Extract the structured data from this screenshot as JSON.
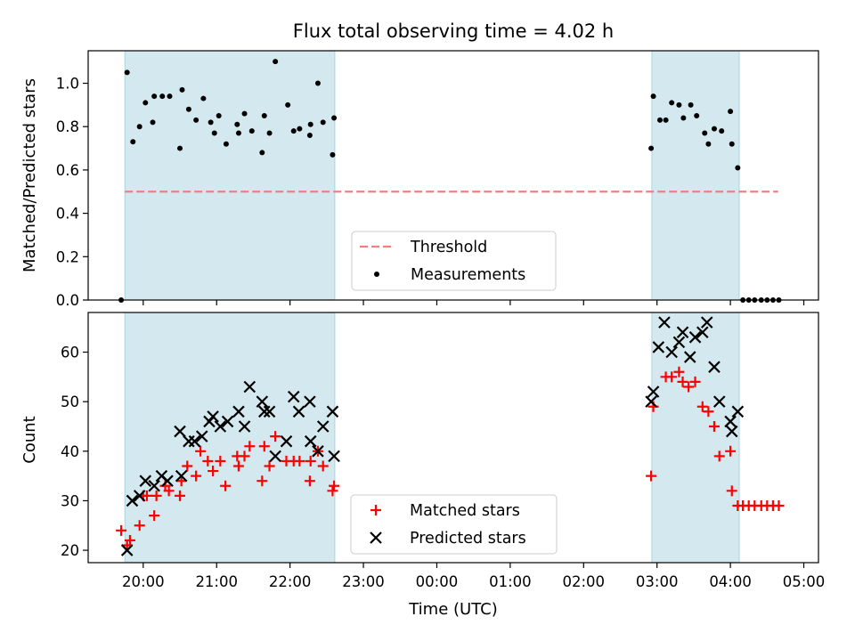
{
  "chart_data": [
    {
      "type": "scatter",
      "title": "Flux total observing time = 4.02 h",
      "xlabel": "",
      "ylabel": "Matched/Predicted stars",
      "xlim": [
        19.25,
        29.2
      ],
      "ylim": [
        0.0,
        1.15
      ],
      "yticks": [
        {
          "v": 0.0,
          "label": "0.0"
        },
        {
          "v": 0.2,
          "label": "0.2"
        },
        {
          "v": 0.4,
          "label": "0.4"
        },
        {
          "v": 0.6,
          "label": "0.6"
        },
        {
          "v": 0.8,
          "label": "0.8"
        },
        {
          "v": 1.0,
          "label": "1.0"
        }
      ],
      "xticks_hours": [
        20,
        21,
        22,
        23,
        24,
        25,
        26,
        27,
        28,
        29
      ],
      "shaded_spans": [
        [
          19.75,
          22.61
        ],
        [
          26.93,
          28.12
        ]
      ],
      "shade_color": "#a8d4e0",
      "legend_position": "lower center",
      "legend": [
        {
          "label": "Threshold",
          "marker": "dashed-line",
          "color": "#f08080"
        },
        {
          "label": "Measurements",
          "marker": "dot",
          "color": "#000000"
        }
      ],
      "threshold": {
        "name": "Threshold",
        "y": 0.5,
        "x_range": [
          19.75,
          28.65
        ],
        "color": "#f08080"
      },
      "series": [
        {
          "name": "Measurements",
          "marker": "dot",
          "color": "#000000",
          "points": [
            [
              19.7,
              0.0
            ],
            [
              19.78,
              1.05
            ],
            [
              19.86,
              0.73
            ],
            [
              19.95,
              0.8
            ],
            [
              20.03,
              0.91
            ],
            [
              20.13,
              0.82
            ],
            [
              20.15,
              0.94
            ],
            [
              20.26,
              0.94
            ],
            [
              20.36,
              0.94
            ],
            [
              20.5,
              0.7
            ],
            [
              20.53,
              0.97
            ],
            [
              20.62,
              0.88
            ],
            [
              20.72,
              0.83
            ],
            [
              20.82,
              0.93
            ],
            [
              20.92,
              0.82
            ],
            [
              20.97,
              0.77
            ],
            [
              21.03,
              0.85
            ],
            [
              21.13,
              0.72
            ],
            [
              21.28,
              0.81
            ],
            [
              21.3,
              0.77
            ],
            [
              21.38,
              0.86
            ],
            [
              21.48,
              0.78
            ],
            [
              21.62,
              0.68
            ],
            [
              21.65,
              0.85
            ],
            [
              21.72,
              0.77
            ],
            [
              21.8,
              1.1
            ],
            [
              21.97,
              0.9
            ],
            [
              22.05,
              0.78
            ],
            [
              22.13,
              0.79
            ],
            [
              22.27,
              0.76
            ],
            [
              22.28,
              0.81
            ],
            [
              22.38,
              1.0
            ],
            [
              22.45,
              0.82
            ],
            [
              22.58,
              0.67
            ],
            [
              22.6,
              0.84
            ],
            [
              26.92,
              0.7
            ],
            [
              26.95,
              0.94
            ],
            [
              27.04,
              0.83
            ],
            [
              27.12,
              0.83
            ],
            [
              27.2,
              0.91
            ],
            [
              27.3,
              0.9
            ],
            [
              27.36,
              0.84
            ],
            [
              27.46,
              0.9
            ],
            [
              27.54,
              0.85
            ],
            [
              27.65,
              0.77
            ],
            [
              27.7,
              0.72
            ],
            [
              27.78,
              0.79
            ],
            [
              27.88,
              0.78
            ],
            [
              28.0,
              0.87
            ],
            [
              28.02,
              0.72
            ],
            [
              28.1,
              0.61
            ],
            [
              28.17,
              0.0
            ],
            [
              28.25,
              0.0
            ],
            [
              28.33,
              0.0
            ],
            [
              28.42,
              0.0
            ],
            [
              28.5,
              0.0
            ],
            [
              28.58,
              0.0
            ],
            [
              28.66,
              0.0
            ]
          ]
        }
      ]
    },
    {
      "type": "scatter",
      "title": "",
      "xlabel": "Time (UTC)",
      "ylabel": "Count",
      "xlim": [
        19.25,
        29.2
      ],
      "ylim": [
        17.5,
        68.0
      ],
      "yticks": [
        {
          "v": 20,
          "label": "20"
        },
        {
          "v": 30,
          "label": "30"
        },
        {
          "v": 40,
          "label": "40"
        },
        {
          "v": 50,
          "label": "50"
        },
        {
          "v": 60,
          "label": "60"
        }
      ],
      "xticks": [
        {
          "v": 20,
          "label": "20:00"
        },
        {
          "v": 21,
          "label": "21:00"
        },
        {
          "v": 22,
          "label": "22:00"
        },
        {
          "v": 23,
          "label": "23:00"
        },
        {
          "v": 24,
          "label": "00:00"
        },
        {
          "v": 25,
          "label": "01:00"
        },
        {
          "v": 26,
          "label": "02:00"
        },
        {
          "v": 27,
          "label": "03:00"
        },
        {
          "v": 28,
          "label": "04:00"
        },
        {
          "v": 29,
          "label": "05:00"
        }
      ],
      "shaded_spans": [
        [
          19.75,
          22.61
        ],
        [
          26.93,
          28.12
        ]
      ],
      "shade_color": "#a8d4e0",
      "legend_position": "lower center",
      "legend": [
        {
          "label": "Matched stars",
          "marker": "plus",
          "color": "#ff0000"
        },
        {
          "label": "Predicted stars",
          "marker": "x",
          "color": "#000000"
        }
      ],
      "series": [
        {
          "name": "Matched stars",
          "marker": "plus",
          "color": "#ff0000",
          "points": [
            [
              19.7,
              24
            ],
            [
              19.78,
              21
            ],
            [
              19.82,
              22
            ],
            [
              19.95,
              25
            ],
            [
              20.0,
              31
            ],
            [
              20.05,
              31
            ],
            [
              20.15,
              27
            ],
            [
              20.18,
              31
            ],
            [
              20.3,
              33
            ],
            [
              20.35,
              32
            ],
            [
              20.5,
              31
            ],
            [
              20.52,
              34
            ],
            [
              20.6,
              37
            ],
            [
              20.72,
              35
            ],
            [
              20.78,
              40
            ],
            [
              20.88,
              38
            ],
            [
              20.95,
              36
            ],
            [
              21.05,
              38
            ],
            [
              21.12,
              33
            ],
            [
              21.28,
              39
            ],
            [
              21.3,
              37
            ],
            [
              21.38,
              39
            ],
            [
              21.45,
              41
            ],
            [
              21.62,
              34
            ],
            [
              21.65,
              41
            ],
            [
              21.72,
              37
            ],
            [
              21.8,
              43
            ],
            [
              21.95,
              38
            ],
            [
              22.05,
              38
            ],
            [
              22.13,
              38
            ],
            [
              22.27,
              34
            ],
            [
              22.28,
              38
            ],
            [
              22.38,
              40
            ],
            [
              22.45,
              37
            ],
            [
              22.58,
              32
            ],
            [
              22.6,
              33
            ],
            [
              26.92,
              35
            ],
            [
              26.95,
              49
            ],
            [
              27.12,
              55
            ],
            [
              27.2,
              55
            ],
            [
              27.3,
              56
            ],
            [
              27.35,
              54
            ],
            [
              27.43,
              53
            ],
            [
              27.52,
              54
            ],
            [
              27.62,
              49
            ],
            [
              27.7,
              48
            ],
            [
              27.78,
              45
            ],
            [
              27.85,
              39
            ],
            [
              28.0,
              40
            ],
            [
              28.02,
              32
            ],
            [
              28.1,
              29
            ],
            [
              28.17,
              29
            ],
            [
              28.25,
              29
            ],
            [
              28.33,
              29
            ],
            [
              28.42,
              29
            ],
            [
              28.5,
              29
            ],
            [
              28.58,
              29
            ],
            [
              28.66,
              29
            ]
          ]
        },
        {
          "name": "Predicted stars",
          "marker": "x",
          "color": "#000000",
          "points": [
            [
              19.78,
              20
            ],
            [
              19.85,
              30
            ],
            [
              19.95,
              31
            ],
            [
              20.03,
              34
            ],
            [
              20.15,
              33
            ],
            [
              20.25,
              35
            ],
            [
              20.33,
              34
            ],
            [
              20.5,
              44
            ],
            [
              20.52,
              35
            ],
            [
              20.62,
              42
            ],
            [
              20.7,
              42
            ],
            [
              20.8,
              43
            ],
            [
              20.9,
              46
            ],
            [
              20.95,
              47
            ],
            [
              21.05,
              45
            ],
            [
              21.15,
              46
            ],
            [
              21.3,
              48
            ],
            [
              21.38,
              45
            ],
            [
              21.45,
              53
            ],
            [
              21.62,
              50
            ],
            [
              21.65,
              48
            ],
            [
              21.72,
              48
            ],
            [
              21.8,
              39
            ],
            [
              21.95,
              42
            ],
            [
              22.05,
              51
            ],
            [
              22.12,
              48
            ],
            [
              22.27,
              50
            ],
            [
              22.28,
              42
            ],
            [
              22.38,
              40
            ],
            [
              22.45,
              45
            ],
            [
              22.58,
              48
            ],
            [
              22.6,
              39
            ],
            [
              26.92,
              50
            ],
            [
              26.95,
              52
            ],
            [
              27.02,
              61
            ],
            [
              27.1,
              66
            ],
            [
              27.2,
              60
            ],
            [
              27.3,
              62
            ],
            [
              27.35,
              64
            ],
            [
              27.45,
              59
            ],
            [
              27.52,
              63
            ],
            [
              27.62,
              64
            ],
            [
              27.68,
              66
            ],
            [
              27.78,
              57
            ],
            [
              27.85,
              50
            ],
            [
              28.0,
              46
            ],
            [
              28.02,
              44
            ],
            [
              28.1,
              48
            ]
          ]
        }
      ]
    }
  ]
}
